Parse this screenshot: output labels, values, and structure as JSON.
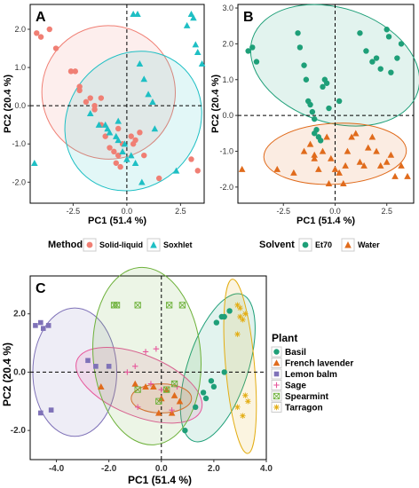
{
  "colors": {
    "solid_liquid": "#f07f74",
    "soxhlet": "#1ebfc4",
    "et70": "#1e9f78",
    "water": "#e06b1c",
    "basil": "#1e9f78",
    "french_lavender": "#e06b1c",
    "lemon_balm": "#7f72b8",
    "sage": "#e7569b",
    "spearmint": "#6db13a",
    "tarragon": "#e3ad13"
  },
  "chart_data": [
    {
      "panel": "A",
      "type": "scatter",
      "xlabel": "PC1 (51.4 %)",
      "ylabel": "PC2 (20.4 %)",
      "xlim": [
        -4.5,
        3.6
      ],
      "ylim": [
        -2.55,
        2.65
      ],
      "xticks": [
        -2.5,
        0.0,
        2.5
      ],
      "xtick_labels": [
        "-2.5",
        "0.0",
        "2.5"
      ],
      "yticks": [
        -2.0,
        -1.0,
        0.0,
        1.0,
        2.0
      ],
      "ytick_labels": [
        "-2.0",
        "-1.0",
        "0.0",
        "1.0",
        "2.0"
      ],
      "reference_lines": {
        "x": 0,
        "y": 0
      },
      "legend": {
        "title": "Method",
        "position": "bottom"
      },
      "series": [
        {
          "name": "Solid-liquid",
          "marker": "circle",
          "color": "#f07f74",
          "ellipse": {
            "cx": -0.85,
            "cy": 0.35,
            "rx": 3.1,
            "ry": 1.75,
            "angle": -38
          },
          "x": [
            -4.2,
            -4.0,
            -3.6,
            -3.3,
            -2.6,
            -2.4,
            -2.2,
            -1.9,
            -1.7,
            -1.5,
            -1.5,
            -1.2,
            -1.0,
            -0.8,
            -0.6,
            -0.5,
            -0.4,
            -0.3,
            -0.2,
            0.2,
            0.4,
            0.6,
            0.8,
            1.5,
            3.0,
            3.3,
            -2.2,
            -1.2,
            -0.4,
            0.3
          ],
          "y": [
            1.9,
            1.8,
            2.0,
            1.5,
            0.9,
            0.9,
            0.5,
            0.1,
            0.2,
            -0.1,
            0.0,
            -0.5,
            -0.8,
            -1.1,
            -1.2,
            -1.5,
            -1.3,
            -1.6,
            -1.0,
            -0.8,
            -0.9,
            -0.7,
            -1.3,
            -1.9,
            -1.4,
            -1.7,
            0.4,
            0.2,
            -0.6,
            -1.0
          ]
        },
        {
          "name": "Soxhlet",
          "marker": "triangle",
          "color": "#1ebfc4",
          "ellipse": {
            "cx": 0.3,
            "cy": -0.4,
            "rx": 3.4,
            "ry": 1.7,
            "angle": -50
          },
          "x": [
            0.3,
            0.5,
            0.6,
            0.8,
            1.0,
            1.2,
            -1.0,
            -0.9,
            -0.5,
            -0.4,
            -0.1,
            0.2,
            0.4,
            0.7,
            2.8,
            3.0,
            3.1,
            3.2,
            3.3,
            3.5,
            -4.3,
            -1.7,
            -1.3,
            -0.8,
            -0.2,
            0.0,
            2.3,
            1.3,
            -0.4
          ],
          "y": [
            2.4,
            2.4,
            1.1,
            0.7,
            0.3,
            0.1,
            -0.5,
            -0.6,
            -0.8,
            -0.9,
            -1.0,
            -1.3,
            -1.5,
            -2.0,
            2.1,
            2.4,
            2.3,
            1.6,
            1.4,
            1.1,
            -1.5,
            -0.2,
            -0.5,
            -0.7,
            -1.2,
            -1.4,
            -1.7,
            -0.6,
            -0.4
          ]
        }
      ]
    },
    {
      "panel": "B",
      "type": "scatter",
      "xlabel": "PC1 (51.4 %)",
      "ylabel": "PC2 (20.4 %)",
      "xlim": [
        -4.7,
        3.8
      ],
      "ylim": [
        -2.45,
        3.1
      ],
      "xticks": [
        -2.5,
        0.0,
        2.5
      ],
      "xtick_labels": [
        "-2.5",
        "0.0",
        "2.5"
      ],
      "yticks": [
        -2.0,
        -1.0,
        0.0,
        1.0,
        2.0,
        3.0
      ],
      "ytick_labels": [
        "-2.0",
        "-1.0",
        "0.0",
        "1.0",
        "2.0",
        "3.0"
      ],
      "reference_lines": {
        "x": 0,
        "y": 0
      },
      "legend": {
        "title": "Solvent",
        "position": "bottom"
      },
      "series": [
        {
          "name": "Et70",
          "marker": "circle",
          "color": "#1e9f78",
          "ellipse": {
            "cx": 0.0,
            "cy": 1.4,
            "rx": 4.2,
            "ry": 1.6,
            "angle": 18
          },
          "x": [
            -4.2,
            -4.0,
            -3.8,
            -1.8,
            -1.7,
            -1.5,
            -1.4,
            -1.3,
            -1.2,
            -1.1,
            -1.0,
            -0.9,
            -0.8,
            -0.7,
            -0.6,
            -0.5,
            -0.4,
            1.2,
            1.5,
            1.8,
            2.0,
            2.2,
            2.5,
            2.6,
            2.7,
            3.0,
            3.2,
            -0.3,
            -1.0,
            0.2
          ],
          "y": [
            1.8,
            1.9,
            1.5,
            2.3,
            1.9,
            1.4,
            1.0,
            0.4,
            0.3,
            0.1,
            -0.1,
            -0.4,
            -0.6,
            -0.7,
            0.8,
            1.0,
            0.9,
            2.3,
            1.8,
            1.5,
            1.6,
            1.3,
            2.4,
            2.2,
            1.2,
            1.6,
            2.0,
            0.2,
            -0.5,
            0.4
          ]
        },
        {
          "name": "Water",
          "marker": "triangle",
          "color": "#e06b1c",
          "ellipse": {
            "cx": 0.0,
            "cy": -1.07,
            "rx": 3.45,
            "ry": 0.85,
            "angle": -3
          },
          "x": [
            -4.5,
            -2.8,
            -2.0,
            -1.5,
            -1.2,
            -1.0,
            -0.8,
            -0.6,
            -0.4,
            -0.2,
            0.0,
            0.2,
            0.4,
            0.6,
            0.8,
            1.0,
            1.2,
            1.4,
            1.6,
            1.8,
            2.0,
            2.2,
            2.5,
            2.7,
            2.9,
            3.2,
            3.5,
            -0.3,
            0.5,
            -1.0
          ],
          "y": [
            -1.5,
            -1.5,
            -1.6,
            -1.0,
            -0.8,
            -1.2,
            -1.5,
            -1.0,
            -0.6,
            -1.2,
            -1.5,
            -1.6,
            -1.9,
            -1.0,
            -0.6,
            -0.5,
            -1.3,
            -1.4,
            -0.9,
            -0.6,
            -1.0,
            -1.4,
            -1.3,
            -1.1,
            -1.7,
            -1.4,
            -1.7,
            -1.9,
            -1.4,
            -1.1
          ]
        }
      ]
    },
    {
      "panel": "C",
      "type": "scatter",
      "xlabel": "PC1 (51.4 %)",
      "ylabel": "PC2 (20.4 %)",
      "xlim": [
        -5.0,
        4.0
      ],
      "ylim": [
        -3.0,
        3.3
      ],
      "xticks": [
        -4.0,
        -2.0,
        0.0,
        2.0,
        4.0
      ],
      "xtick_labels": [
        "-4.0",
        "-2.0",
        "0.0",
        "2.0",
        "4.0"
      ],
      "yticks": [
        -2.0,
        0.0,
        2.0
      ],
      "ytick_labels": [
        "-2.0",
        "0.0",
        "2.0"
      ],
      "reference_lines": {
        "x": 0,
        "y": 0
      },
      "legend": {
        "title": "Plant",
        "position": "right"
      },
      "series": [
        {
          "name": "Basil",
          "marker": "circle",
          "color": "#1e9f78",
          "ellipse": {
            "cx": 2.15,
            "cy": 0.15,
            "rx": 1.15,
            "ry": 2.65,
            "angle": 18
          },
          "x": [
            2.1,
            2.3,
            2.4,
            2.6,
            2.4,
            1.9,
            1.7,
            1.3,
            1.6,
            2.0,
            0.9
          ],
          "y": [
            1.7,
            1.9,
            1.9,
            2.1,
            0.0,
            -0.3,
            -0.9,
            -1.2,
            -0.7,
            -0.5,
            -2.0
          ]
        },
        {
          "name": "French lavender",
          "marker": "triangle",
          "color": "#e06b1c",
          "ellipse": {
            "cx": 0.0,
            "cy": -0.9,
            "rx": 1.15,
            "ry": 0.5,
            "angle": 0
          },
          "x": [
            -2.3,
            -1.0,
            -0.6,
            -0.3,
            0.2,
            0.5,
            0.7,
            -0.1,
            0.4,
            0.0
          ],
          "y": [
            -0.5,
            -0.4,
            -0.5,
            -0.5,
            -0.6,
            -0.8,
            -1.0,
            -1.4,
            -1.4,
            -0.9
          ]
        },
        {
          "name": "Lemon balm",
          "marker": "square",
          "color": "#7f72b8",
          "ellipse": {
            "cx": -3.3,
            "cy": 0.0,
            "rx": 1.6,
            "ry": 2.2,
            "angle": 0
          },
          "x": [
            -4.8,
            -4.6,
            -4.3,
            -4.5,
            -2.8,
            -2.5,
            -2.0,
            -4.6,
            -4.2
          ],
          "y": [
            1.6,
            1.7,
            1.6,
            1.5,
            0.4,
            0.2,
            0.2,
            -1.4,
            -1.3
          ]
        },
        {
          "name": "Sage",
          "marker": "plus",
          "color": "#e7569b",
          "ellipse": {
            "cx": -0.85,
            "cy": -0.45,
            "rx": 2.55,
            "ry": 1.05,
            "angle": 22
          },
          "x": [
            -0.2,
            -0.6,
            -1.0,
            -1.3,
            -0.4,
            0.0,
            0.6,
            0.4,
            -0.9
          ],
          "y": [
            0.8,
            0.7,
            0.2,
            0.0,
            -0.4,
            -0.6,
            -0.5,
            -1.3,
            -1.2
          ]
        },
        {
          "name": "Spearmint",
          "marker": "boxcross",
          "color": "#6db13a",
          "ellipse": {
            "cx": -0.55,
            "cy": 0.55,
            "rx": 2.05,
            "ry": 3.05,
            "angle": -5
          },
          "x": [
            -1.8,
            -1.7,
            -0.9,
            0.3,
            0.8,
            0.5,
            -0.9,
            0.2,
            -0.1
          ],
          "y": [
            2.3,
            2.3,
            2.3,
            2.3,
            2.3,
            -0.4,
            -0.6,
            -0.6,
            -1.0
          ]
        },
        {
          "name": "Tarragon",
          "marker": "star",
          "color": "#e3ad13",
          "ellipse": {
            "cx": 3.0,
            "cy": 0.2,
            "rx": 0.55,
            "ry": 3.0,
            "angle": -5
          },
          "x": [
            2.9,
            3.0,
            3.2,
            3.1,
            3.0,
            2.9,
            3.2,
            3.3,
            2.9,
            3.1
          ],
          "y": [
            2.3,
            2.2,
            2.0,
            1.8,
            1.9,
            1.3,
            -0.8,
            -1.0,
            -1.2,
            -1.5
          ]
        }
      ]
    }
  ]
}
